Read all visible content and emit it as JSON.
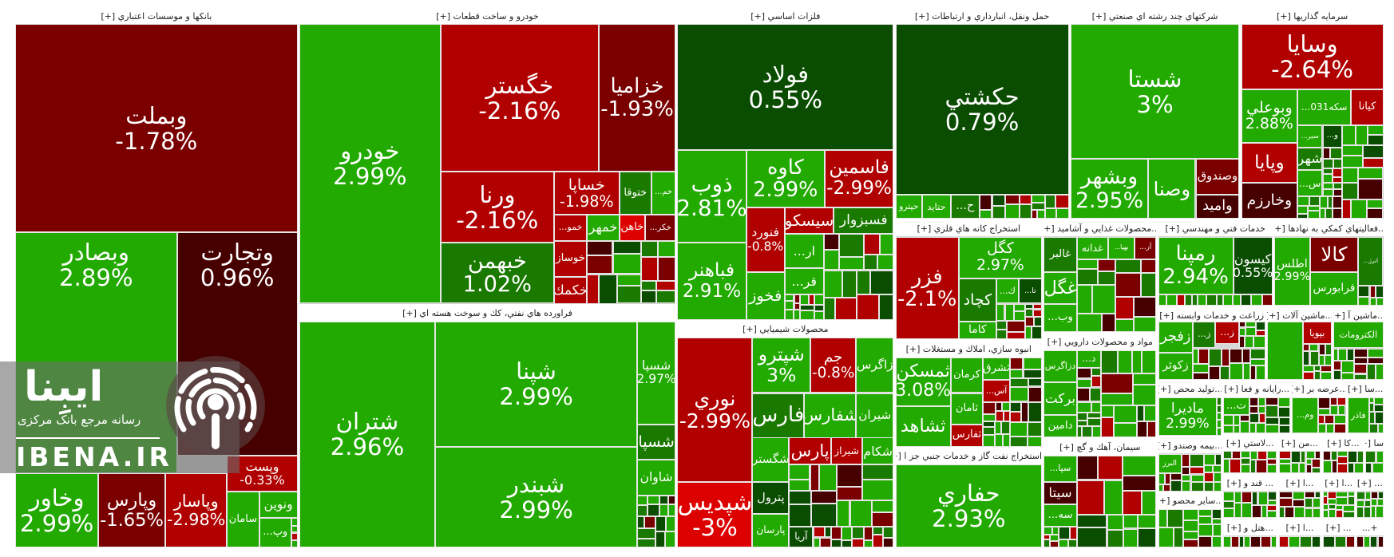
{
  "palette": {
    "up_strong": "#22aa00",
    "up_mid": "#1a7a00",
    "up_dark": "#0a4d00",
    "up_bright": "#33ee00",
    "down_strong": "#b00000",
    "down_mid": "#7a0000",
    "down_dark": "#470000",
    "down_bright": "#dd0000"
  },
  "watermark": {
    "brand_fa": "ایبِنا",
    "tagline": "رسانه مرجع بانک مرکزی",
    "domain": "IBENA.IR"
  },
  "sectors": [
    {
      "title": "بانكها و موسسات اعتباري [+]",
      "tiles": [
        {
          "label": "وبملت",
          "pct": "-1.78%",
          "color": "#7a0000"
        },
        {
          "label": "وبصادر",
          "pct": "2.89%",
          "color": "#22aa00"
        },
        {
          "label": "وتجارت",
          "pct": "0.96%",
          "color": "#470000"
        },
        {
          "label": "وخاور",
          "pct": "2.99%",
          "color": "#22aa00"
        },
        {
          "label": "وپارس",
          "pct": "-1.65%",
          "color": "#7a0000"
        },
        {
          "label": "وپاسار",
          "pct": "-2.98%",
          "color": "#b00000"
        },
        {
          "label": "وپست",
          "pct": "-0.33%",
          "color": "#b00000"
        },
        {
          "label": "سامان",
          "pct": "",
          "color": "#22aa00"
        },
        {
          "label": "ونوين",
          "pct": "",
          "color": "#22aa00"
        },
        {
          "label": "...وپ",
          "pct": "",
          "color": "#22aa00"
        }
      ]
    },
    {
      "title": "خودرو و ساخت قطعات [+]",
      "tiles": [
        {
          "label": "خودرو",
          "pct": "2.99%",
          "color": "#22aa00"
        },
        {
          "label": "خگستر",
          "pct": "-2.16%",
          "color": "#b00000"
        },
        {
          "label": "خزاميا",
          "pct": "-1.93%",
          "color": "#7a0000"
        },
        {
          "label": "ورنا",
          "pct": "-2.16%",
          "color": "#b00000"
        },
        {
          "label": "خبهمن",
          "pct": "1.02%",
          "color": "#1a7a00"
        },
        {
          "label": "خساپا",
          "pct": "-1.98%",
          "color": "#b00000"
        },
        {
          "label": "ختوقا",
          "pct": "",
          "color": "#1a7a00"
        },
        {
          "label": "...خم",
          "pct": "",
          "color": "#22aa00"
        },
        {
          "label": "...خمو",
          "pct": "",
          "color": "#b00000"
        },
        {
          "label": "خمهر",
          "pct": "",
          "color": "#22aa00"
        },
        {
          "label": "خاهن",
          "pct": "",
          "color": "#dd0000"
        },
        {
          "label": "...خكر",
          "pct": "",
          "color": "#7a0000"
        },
        {
          "label": "خوساز",
          "pct": "",
          "color": "#b00000"
        },
        {
          "label": "خكمك",
          "pct": "",
          "color": "#b00000"
        }
      ]
    },
    {
      "title": "فراورده هاي نفتي، كك و سوخت هسته اي [+]",
      "tiles": [
        {
          "label": "شتران",
          "pct": "2.96%",
          "color": "#22aa00"
        },
        {
          "label": "شپنا",
          "pct": "2.99%",
          "color": "#22aa00"
        },
        {
          "label": "شبندر",
          "pct": "2.99%",
          "color": "#22aa00"
        },
        {
          "label": "شسپا",
          "pct": "2.97%",
          "color": "#22aa00"
        },
        {
          "label": "شسپا",
          "pct": "",
          "color": "#1a7a00"
        },
        {
          "label": "شاوان",
          "pct": "",
          "color": "#22aa00"
        }
      ]
    },
    {
      "title": "فلزات اساسي [+]",
      "tiles": [
        {
          "label": "فولاد",
          "pct": "0.55%",
          "color": "#0a4d00"
        },
        {
          "label": "ذوب",
          "pct": "2.81%",
          "color": "#22aa00"
        },
        {
          "label": "فباهنر",
          "pct": "2.91%",
          "color": "#22aa00"
        },
        {
          "label": "كاوه",
          "pct": "2.99%",
          "color": "#22aa00"
        },
        {
          "label": "فاسمين",
          "pct": "-2.99%",
          "color": "#b00000"
        },
        {
          "label": "فنورد",
          "pct": "-0.8%",
          "color": "#b00000"
        },
        {
          "label": "سيسكو",
          "pct": "",
          "color": "#b00000"
        },
        {
          "label": "فسبزوار",
          "pct": "",
          "color": "#1a7a00"
        },
        {
          "label": "...ار",
          "pct": "",
          "color": "#22aa00"
        },
        {
          "label": "...قر",
          "pct": "",
          "color": "#22aa00"
        },
        {
          "label": "فخوز",
          "pct": "",
          "color": "#22aa00"
        }
      ]
    },
    {
      "title": "محصولات شيميايي [+]",
      "tiles": [
        {
          "label": "نوري",
          "pct": "-2.99%",
          "color": "#b00000"
        },
        {
          "label": "شپديس",
          "pct": "-3%",
          "color": "#dd0000"
        },
        {
          "label": "شپترو",
          "pct": "3%",
          "color": "#22aa00"
        },
        {
          "label": "جم",
          "pct": "-0.8%",
          "color": "#b00000"
        },
        {
          "label": "زاگرس",
          "pct": "",
          "color": "#22aa00"
        },
        {
          "label": "فارس",
          "pct": "",
          "color": "#1a7a00"
        },
        {
          "label": "شفارس",
          "pct": "",
          "color": "#22aa00"
        },
        {
          "label": "شيران",
          "pct": "",
          "color": "#22aa00"
        },
        {
          "label": "شگستر",
          "pct": "",
          "color": "#22aa00"
        },
        {
          "label": "پارس",
          "pct": "",
          "color": "#b00000"
        },
        {
          "label": "شيراز",
          "pct": "",
          "color": "#b00000"
        },
        {
          "label": "شكام",
          "pct": "",
          "color": "#22aa00"
        },
        {
          "label": "پترول",
          "pct": "",
          "color": "#0a4d00"
        },
        {
          "label": "پارسان",
          "pct": "",
          "color": "#22aa00"
        },
        {
          "label": "آريا",
          "pct": "",
          "color": "#0a4d00"
        }
      ]
    },
    {
      "title": "حمل ونقل، انبارداري و ارتباطات [+]",
      "tiles": [
        {
          "label": "حكشتي",
          "pct": "0.79%",
          "color": "#0a4d00"
        },
        {
          "label": "حپترو",
          "pct": "",
          "color": "#22aa00"
        },
        {
          "label": "حتايد",
          "pct": "",
          "color": "#22aa00"
        },
        {
          "label": "...ح",
          "pct": "",
          "color": "#1a7a00"
        }
      ]
    },
    {
      "title": "شركتهاي چند رشته اي صنعتي [+]",
      "tiles": [
        {
          "label": "شستا",
          "pct": "3%",
          "color": "#22aa00"
        },
        {
          "label": "وبشهر",
          "pct": "2.95%",
          "color": "#22aa00"
        },
        {
          "label": "وصنا",
          "pct": "",
          "color": "#22aa00"
        },
        {
          "label": "وصندوق",
          "pct": "",
          "color": "#7a0000"
        },
        {
          "label": "واميد",
          "pct": "",
          "color": "#470000"
        }
      ]
    },
    {
      "title": "سرمايه گذاريها [+]",
      "tiles": [
        {
          "label": "وسايا",
          "pct": "-2.64%",
          "color": "#b00000"
        },
        {
          "label": "وبوعلي",
          "pct": "2.88%",
          "color": "#22aa00"
        },
        {
          "label": "...سكه031",
          "pct": "",
          "color": "#22aa00"
        },
        {
          "label": "كيانا",
          "pct": "",
          "color": "#b00000"
        },
        {
          "label": "...سير",
          "pct": "",
          "color": "#22aa00"
        },
        {
          "label": "...و",
          "pct": "",
          "color": "#0a4d00"
        },
        {
          "label": "وپايا",
          "pct": "",
          "color": "#b00000"
        },
        {
          "label": "شهر",
          "pct": "",
          "color": "#1a7a00"
        },
        {
          "label": "وخارزم",
          "pct": "",
          "color": "#470000"
        },
        {
          "label": "...س",
          "pct": "",
          "color": "#22aa00"
        }
      ]
    },
    {
      "title": "استخراج كانه هاي فلزي [+]",
      "tiles": [
        {
          "label": "فزر",
          "pct": "-2.1%",
          "color": "#b00000"
        },
        {
          "label": "كگل",
          "pct": "2.97%",
          "color": "#22aa00"
        },
        {
          "label": "كچاد",
          "pct": "",
          "color": "#1a7a00"
        },
        {
          "label": "...ك",
          "pct": "",
          "color": "#22aa00"
        },
        {
          "label": "...تا",
          "pct": "",
          "color": "#0a4d00"
        },
        {
          "label": "كاما",
          "pct": "",
          "color": "#22aa00"
        }
      ]
    },
    {
      "title": "...محصولات غذايي و آشاميد [+]",
      "tiles": [
        {
          "label": "غالبر",
          "pct": "",
          "color": "#1a7a00"
        },
        {
          "label": "غدانه",
          "pct": "",
          "color": "#22aa00"
        },
        {
          "label": "...بهپا",
          "pct": "",
          "color": "#22aa00"
        },
        {
          "label": "...آر",
          "pct": "",
          "color": "#7a0000"
        },
        {
          "label": "غگل",
          "pct": "",
          "color": "#22aa00"
        },
        {
          "label": "...وب",
          "pct": "",
          "color": "#22aa00"
        }
      ]
    },
    {
      "title": "خدمات فني و مهندسي [+]",
      "tiles": [
        {
          "label": "رمپنا",
          "pct": "2.94%",
          "color": "#22aa00"
        },
        {
          "label": "كيسون",
          "pct": "0.55%",
          "color": "#0a4d00"
        }
      ]
    },
    {
      "title": "...فعاليتهاي كمكي به نهادها [+]",
      "tiles": [
        {
          "label": "اطلس",
          "pct": "2.99%",
          "color": "#22aa00"
        },
        {
          "label": "كالا",
          "pct": "",
          "color": "#7a0000"
        },
        {
          "label": "...انرژ",
          "pct": "",
          "color": "#1a7a00"
        },
        {
          "label": "فرابورس",
          "pct": "",
          "color": "#22aa00"
        }
      ]
    },
    {
      "title": "انبوه سازي، املاك و مستغلات [+]",
      "tiles": [
        {
          "label": "ثمسكن",
          "pct": "3.08%",
          "color": "#22aa00"
        },
        {
          "label": "ثشاهد",
          "pct": "",
          "color": "#22aa00"
        },
        {
          "label": "كرمان",
          "pct": "",
          "color": "#22aa00"
        },
        {
          "label": "ثشرق",
          "pct": "",
          "color": "#22aa00"
        },
        {
          "label": "...آس",
          "pct": "",
          "color": "#b00000"
        },
        {
          "label": "ثامان",
          "pct": "",
          "color": "#22aa00"
        },
        {
          "label": "ثفارس",
          "pct": "",
          "color": "#b00000"
        }
      ]
    },
    {
      "title": "...استخراج نفت گاز و خدمات جنبي جز ا [+]",
      "tiles": [
        {
          "label": "حفاري",
          "pct": "2.93%",
          "color": "#22aa00"
        }
      ]
    },
    {
      "title": "مواد و محصولات دارويي [+]",
      "tiles": [
        {
          "label": "دزاگرس",
          "pct": "",
          "color": "#22aa00"
        },
        {
          "label": "بركت",
          "pct": "",
          "color": "#22aa00"
        },
        {
          "label": "دامين",
          "pct": "",
          "color": "#22aa00"
        },
        {
          "label": "...د",
          "pct": "",
          "color": "#22aa00"
        }
      ]
    },
    {
      "title": "سيمان، آهك و گچ [+]",
      "tiles": [
        {
          "label": "...سپا",
          "pct": "",
          "color": "#22aa00"
        },
        {
          "label": "سيتا",
          "pct": "",
          "color": "#470000"
        },
        {
          "label": "...سه",
          "pct": "",
          "color": "#22aa00"
        }
      ]
    },
    {
      "title": "زراعت و خدمات وابسته [+]",
      "tiles": [
        {
          "label": "زفجر",
          "pct": "",
          "color": "#22aa00"
        },
        {
          "label": "زكوثر",
          "pct": "",
          "color": "#22aa00"
        },
        {
          "label": "...ز",
          "pct": "",
          "color": "#1a7a00"
        },
        {
          "label": "...ز",
          "pct": "",
          "color": "#b00000"
        }
      ]
    },
    {
      "title": "...ماشين آلات [+]",
      "tiles": [
        {
          "label": "",
          "pct": "",
          "color": "#22aa00"
        },
        {
          "label": "بپويا",
          "pct": "",
          "color": "#b00000"
        }
      ]
    },
    {
      "title": "...ماشين آ [+]",
      "tiles": [
        {
          "label": "الكترومات",
          "pct": "",
          "color": "#22aa00"
        }
      ]
    },
    {
      "title": "...توليد محص [+]",
      "tiles": [
        {
          "label": "ماديرا",
          "pct": "2.99%",
          "color": "#22aa00"
        }
      ]
    },
    {
      "title": "...رايانه و فعا [+]",
      "tiles": [
        {
          "label": "...ت",
          "pct": "",
          "color": "#22aa00"
        }
      ]
    },
    {
      "title": "...عرضه بر [+]",
      "tiles": [
        {
          "label": "...وم",
          "pct": "",
          "color": "#22aa00"
        }
      ]
    },
    {
      "title": "...سا [+]",
      "tiles": [
        {
          "label": "فاذر",
          "pct": "",
          "color": "#22aa00"
        }
      ]
    },
    {
      "title": "...بيمه وصندو [+]",
      "tiles": [
        {
          "label": "البرز",
          "pct": "",
          "color": "#22aa00"
        }
      ]
    },
    {
      "title": "...ساير محصو [+]",
      "tiles": []
    },
    {
      "title": "...لاستي [+]",
      "tiles": []
    },
    {
      "title": "...من [+]",
      "tiles": []
    },
    {
      "title": "...كا [+]",
      "tiles": []
    },
    {
      "title": "...سا [+]",
      "tiles": []
    },
    {
      "title": "... قند و [+]",
      "tiles": []
    },
    {
      "title": "...ا [+]",
      "tiles": []
    },
    {
      "title": "...ا [+]",
      "tiles": []
    },
    {
      "title": "... [+]",
      "tiles": []
    },
    {
      "title": "...هتل و [+]",
      "tiles": []
    },
    {
      "title": "...ا [+]",
      "tiles": []
    },
    {
      "title": "... [+]",
      "tiles": []
    },
    {
      "title": "+...",
      "tiles": []
    }
  ]
}
